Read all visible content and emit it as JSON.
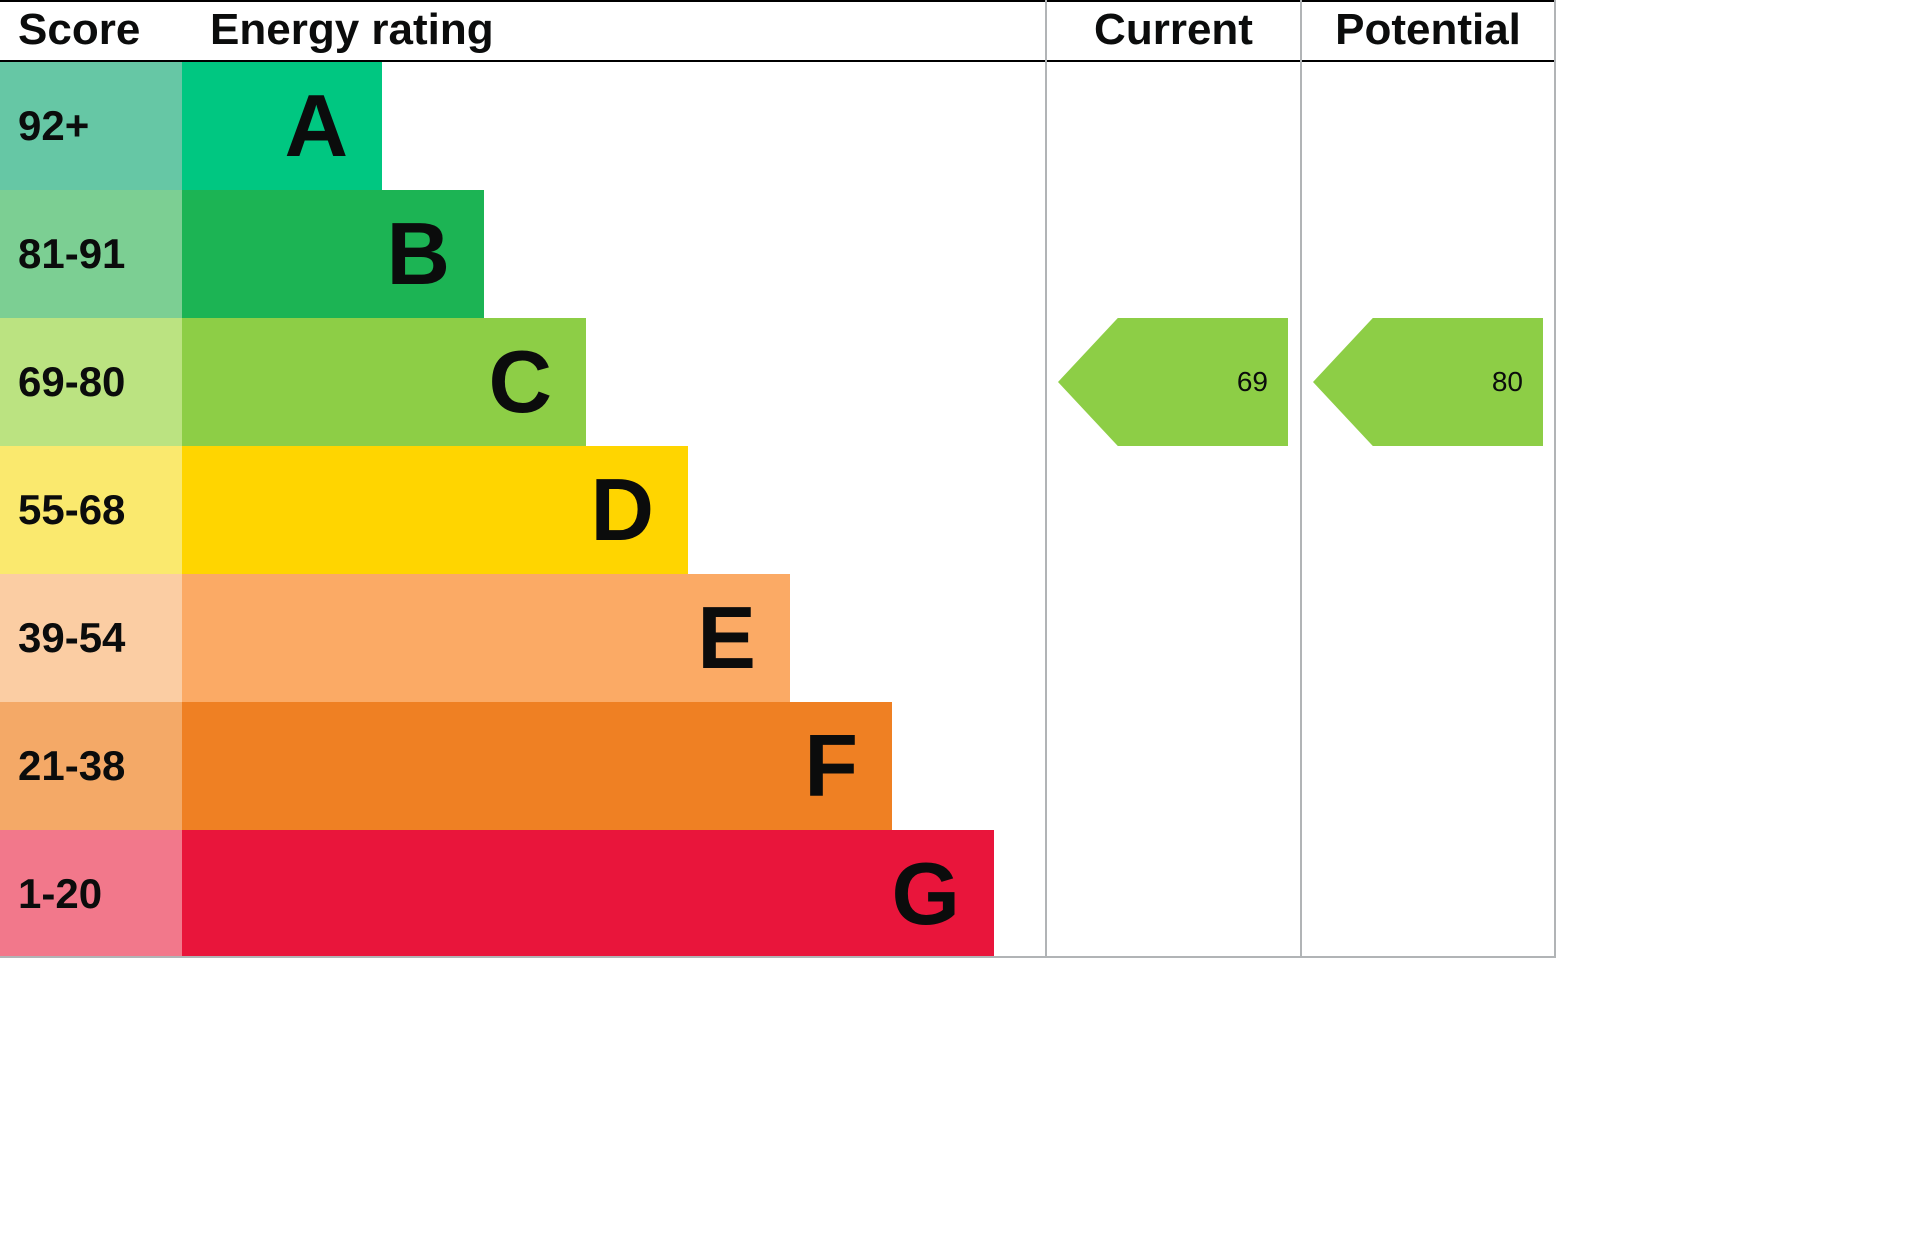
{
  "header": {
    "score": "Score",
    "energy_rating": "Energy rating",
    "current": "Current",
    "potential": "Potential"
  },
  "bands": [
    {
      "letter": "A",
      "score": "92+",
      "color": "#00c781",
      "tint": "#66c7a5"
    },
    {
      "letter": "B",
      "score": "81-91",
      "color": "#1cb454",
      "tint": "#7ccf93"
    },
    {
      "letter": "C",
      "score": "69-80",
      "color": "#8dce46",
      "tint": "#bbe381"
    },
    {
      "letter": "D",
      "score": "55-68",
      "color": "#ffd500",
      "tint": "#fae96e"
    },
    {
      "letter": "E",
      "score": "39-54",
      "color": "#fbaa65",
      "tint": "#fbcda3"
    },
    {
      "letter": "F",
      "score": "21-38",
      "color": "#ef8023",
      "tint": "#f4a967"
    },
    {
      "letter": "G",
      "score": "1-20",
      "color": "#e9153b",
      "tint": "#f2788b"
    }
  ],
  "current": {
    "value": "69",
    "band": "C",
    "color": "#8dce46"
  },
  "potential": {
    "value": "80",
    "band": "C",
    "color": "#8dce46"
  },
  "chart_data": {
    "type": "bar",
    "title": "Energy rating",
    "orientation": "horizontal",
    "categories": [
      "A",
      "B",
      "C",
      "D",
      "E",
      "F",
      "G"
    ],
    "score_ranges": [
      "92+",
      "81-91",
      "69-80",
      "55-68",
      "39-54",
      "21-38",
      "1-20"
    ],
    "band_colors": [
      "#00c781",
      "#1cb454",
      "#8dce46",
      "#ffd500",
      "#fbaa65",
      "#ef8023",
      "#e9153b"
    ],
    "columns": [
      "Score",
      "Energy rating",
      "Current",
      "Potential"
    ],
    "current": 69,
    "current_band": "C",
    "potential": 80,
    "potential_band": "C",
    "legend_position": "none",
    "grid": false
  }
}
